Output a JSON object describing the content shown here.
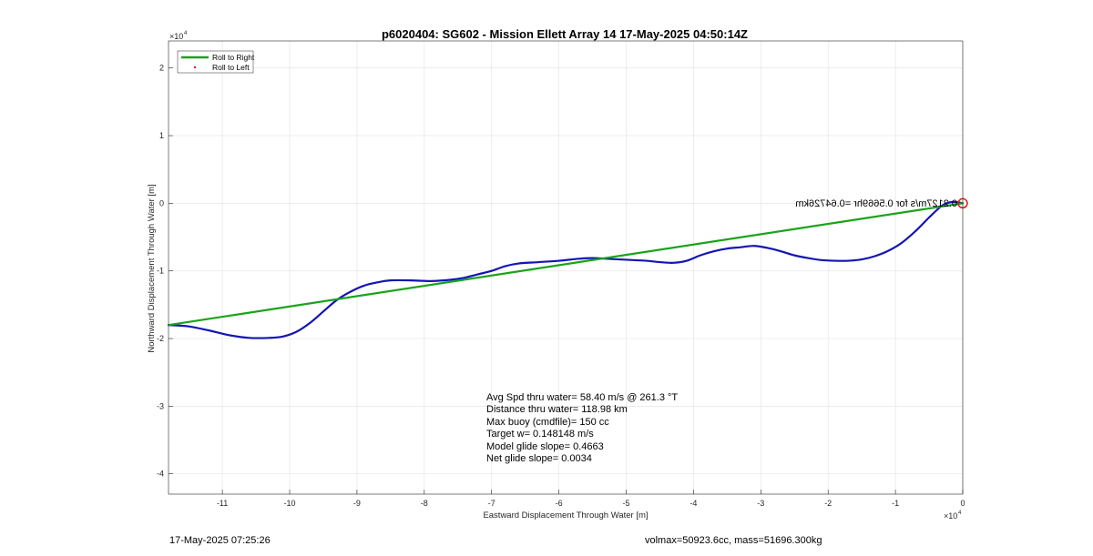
{
  "chart_data": {
    "type": "line",
    "title": "p6020404: SG602 - Mission Ellett Array 14 17-May-2025 04:50:14Z",
    "xlabel": "Eastward Displacement Through Water [m]",
    "ylabel": "Northward Displacement Through Water [m]",
    "x_exponent_label": "×10^4",
    "y_exponent_label": "×10^4",
    "xlim": [
      -118000,
      0
    ],
    "ylim": [
      -43000,
      24000
    ],
    "x_ticks": [
      -110000,
      -100000,
      -90000,
      -80000,
      -70000,
      -60000,
      -50000,
      -40000,
      -30000,
      -20000,
      -10000,
      0
    ],
    "x_tick_labels": [
      "-11",
      "-10",
      "-9",
      "-8",
      "-7",
      "-6",
      "-5",
      "-4",
      "-3",
      "-2",
      "-1",
      "0"
    ],
    "y_ticks": [
      -40000,
      -30000,
      -20000,
      -10000,
      0,
      10000,
      20000
    ],
    "y_tick_labels": [
      "-4",
      "-3",
      "-2",
      "-1",
      "0",
      "1",
      "2"
    ],
    "grid": true,
    "legend_position": "top-left",
    "legend": [
      {
        "label": "Roll to Right",
        "color": "#1aa31a",
        "style": "line"
      },
      {
        "label": "Roll to Left",
        "color": "#e01a1a",
        "style": "dot"
      }
    ],
    "series": [
      {
        "name": "Roll to Right",
        "color": "#1aa31a",
        "x": [
          -118000,
          0
        ],
        "y": [
          -18000,
          0
        ]
      },
      {
        "color": "#1414b4",
        "x": [
          -118000,
          -115000,
          -112000,
          -109000,
          -106000,
          -103000,
          -101000,
          -99000,
          -97000,
          -95000,
          -93000,
          -91000,
          -89000,
          -87000,
          -85000,
          -82000,
          -79000,
          -76000,
          -74000,
          -72000,
          -70000,
          -68000,
          -66000,
          -63000,
          -60000,
          -57000,
          -55000,
          -53000,
          -51000,
          -49000,
          -47000,
          -45000,
          -43000,
          -41000,
          -39000,
          -37000,
          -35000,
          -33000,
          -31000,
          -29000,
          -27000,
          -25000,
          -23000,
          -21000,
          -19000,
          -17000,
          -15000,
          -13000,
          -11000,
          -9000,
          -7000,
          -5000,
          -3000,
          -1500,
          0
        ],
        "y": [
          -18000,
          -18200,
          -18800,
          -19500,
          -19900,
          -19900,
          -19700,
          -19000,
          -17700,
          -16000,
          -14300,
          -13100,
          -12200,
          -11700,
          -11400,
          -11400,
          -11500,
          -11300,
          -11000,
          -10500,
          -10000,
          -9300,
          -8900,
          -8700,
          -8500,
          -8200,
          -8100,
          -8200,
          -8300,
          -8400,
          -8500,
          -8700,
          -8800,
          -8500,
          -7700,
          -7100,
          -6700,
          -6500,
          -6300,
          -6600,
          -7100,
          -7700,
          -8100,
          -8400,
          -8500,
          -8500,
          -8300,
          -7800,
          -7000,
          -5800,
          -4100,
          -2100,
          -300,
          200,
          0
        ]
      }
    ],
    "end_marker": {
      "x": 0,
      "y": 0,
      "color": "#e01a1a"
    },
    "mirrored_annotation": "0.2127m/s for 0.5669hr =0.64726km",
    "stats_text": [
      "Avg Spd thru water= 58.40 m/s @ 261.3 °T",
      "Distance thru water= 118.98 km",
      "Max buoy (cmdfile)= 150 cc",
      "Target w= 0.148148 m/s",
      "Model glide slope= 0.4663",
      "Net glide slope= 0.0034"
    ]
  },
  "footer": {
    "timestamp": "17-May-2025 07:25:26",
    "vol_mass": "volmax=50923.6cc, mass=51696.300kg"
  }
}
